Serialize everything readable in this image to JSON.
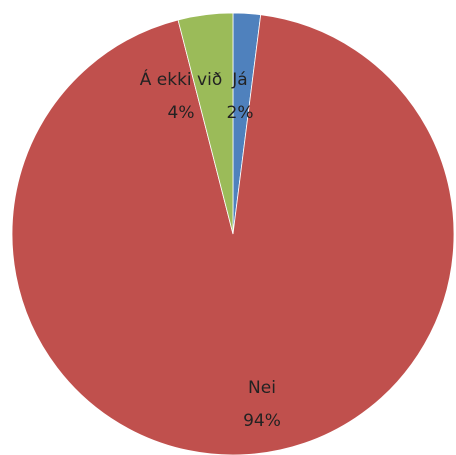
{
  "chart_data": {
    "type": "pie",
    "categories": [
      "Já",
      "Nei",
      "Á ekki við"
    ],
    "values": [
      2,
      94,
      4
    ],
    "value_labels": [
      "2%",
      "94%",
      "4%"
    ],
    "colors": [
      "#4f81bd",
      "#c0504d",
      "#9bbb59"
    ]
  }
}
